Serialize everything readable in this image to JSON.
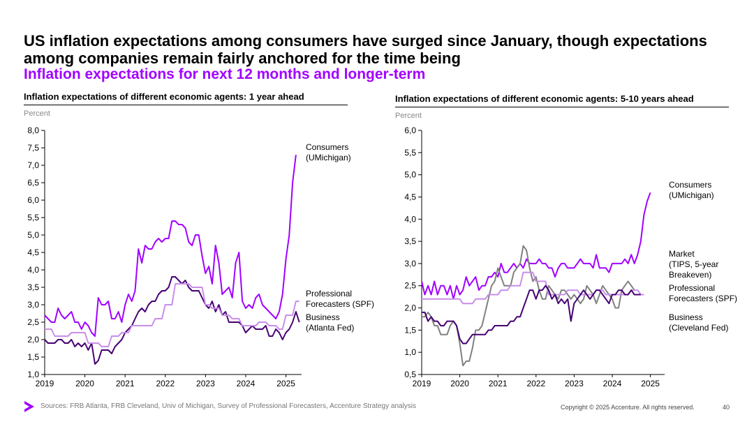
{
  "title": "US inflation expectations among consumers have surged since January, though expectations among companies remain fairly anchored for the time being",
  "subtitle": "Inflation expectations for next 12 months and longer-term",
  "footer": {
    "sources": "Sources: FRB Atlanta, FRB Cleveland, Univ of Michigan, Survey of Professional Forecasters, Accenture Strategy analysis",
    "copyright": "Copyright © 2025 Accenture. All rights reserved.",
    "page": "40"
  },
  "colors": {
    "accent": "#a100ff",
    "consumers": "#a100ff",
    "business": "#460073",
    "professional": "#c88ee8",
    "market": "#808080"
  },
  "chart_data": [
    {
      "type": "line",
      "title": "Inflation expectations of different economic agents: 1 year ahead",
      "ylabel": "Percent",
      "ylim": [
        1.0,
        8.0
      ],
      "yticks": [
        "8,0",
        "7,5",
        "7,0",
        "6,5",
        "6,0",
        "5,5",
        "5,0",
        "4,5",
        "4,0",
        "3,5",
        "3,0",
        "2,5",
        "2,0",
        "1,5",
        "1,0"
      ],
      "xticks": [
        "2019",
        "2020",
        "2021",
        "2022",
        "2023",
        "2024",
        "2025"
      ],
      "xlim": [
        2019.0,
        2025.5
      ],
      "series": [
        {
          "name": "Consumers (UMichigan)",
          "label_lines": [
            "Consumers",
            "(UMichigan)"
          ],
          "color": "#a100ff",
          "start": 2019.0,
          "step": 0.0833,
          "values": [
            2.7,
            2.6,
            2.5,
            2.5,
            2.9,
            2.7,
            2.6,
            2.7,
            2.8,
            2.5,
            2.5,
            2.3,
            2.5,
            2.4,
            2.2,
            2.1,
            3.2,
            3.0,
            3.0,
            3.1,
            2.6,
            2.6,
            2.8,
            2.5,
            3.0,
            3.3,
            3.1,
            3.4,
            4.6,
            4.2,
            4.7,
            4.6,
            4.6,
            4.8,
            4.9,
            4.8,
            4.9,
            4.9,
            5.4,
            5.4,
            5.3,
            5.3,
            5.2,
            4.8,
            4.7,
            5.0,
            5.0,
            4.4,
            3.9,
            4.1,
            3.6,
            4.7,
            4.2,
            3.3,
            3.4,
            3.5,
            3.2,
            4.2,
            4.5,
            3.1,
            2.9,
            3.0,
            2.9,
            3.2,
            3.3,
            3.0,
            2.9,
            2.8,
            2.7,
            2.6,
            2.8,
            3.3,
            4.3,
            5.0,
            6.5,
            7.3
          ]
        },
        {
          "name": "Business (Atlanta Fed)",
          "label_lines": [
            "Business",
            "(Atlanta Fed)"
          ],
          "color": "#460073",
          "start": 2019.0,
          "step": 0.0833,
          "values": [
            2.0,
            1.9,
            1.9,
            1.9,
            2.0,
            2.0,
            1.9,
            1.9,
            2.0,
            1.8,
            1.9,
            1.8,
            1.9,
            1.7,
            1.9,
            1.3,
            1.4,
            1.7,
            1.7,
            1.7,
            1.6,
            1.8,
            1.9,
            2.0,
            2.2,
            2.3,
            2.4,
            2.6,
            2.8,
            2.9,
            2.8,
            3.0,
            3.1,
            3.1,
            3.3,
            3.4,
            3.4,
            3.5,
            3.8,
            3.8,
            3.7,
            3.6,
            3.7,
            3.5,
            3.4,
            3.4,
            3.4,
            3.2,
            3.0,
            2.9,
            3.1,
            2.8,
            3.0,
            2.7,
            2.8,
            2.5,
            2.5,
            2.5,
            2.5,
            2.4,
            2.2,
            2.3,
            2.4,
            2.3,
            2.3,
            2.3,
            2.4,
            2.1,
            2.1,
            2.3,
            2.2,
            2.0,
            2.2,
            2.3,
            2.5,
            2.8,
            2.5
          ]
        },
        {
          "name": "Professional Forecasters (SPF)",
          "label_lines": [
            "Professional",
            "Forecasters (SPF)"
          ],
          "color": "#c88ee8",
          "start": 2019.0,
          "step": 0.0833,
          "values": [
            2.3,
            2.3,
            2.3,
            2.1,
            2.1,
            2.1,
            2.1,
            2.1,
            2.2,
            2.2,
            2.2,
            2.2,
            2.2,
            1.9,
            1.9,
            1.9,
            1.9,
            1.8,
            1.8,
            1.8,
            2.1,
            2.1,
            2.1,
            2.2,
            2.2,
            2.2,
            2.4,
            2.4,
            2.4,
            2.4,
            2.4,
            2.4,
            2.4,
            2.6,
            2.6,
            2.6,
            3.0,
            3.0,
            3.0,
            3.6,
            3.6,
            3.6,
            3.6,
            3.6,
            3.5,
            3.5,
            3.5,
            3.5,
            3.0,
            3.0,
            2.9,
            2.9,
            2.9,
            2.7,
            2.7,
            2.7,
            2.6,
            2.6,
            2.6,
            2.4,
            2.4,
            2.4,
            2.4,
            2.4,
            2.5,
            2.5,
            2.5,
            2.4,
            2.4,
            2.4,
            2.3,
            2.3,
            2.7,
            2.7,
            2.7,
            3.1,
            3.1
          ]
        }
      ]
    },
    {
      "type": "line",
      "title": "Inflation expectations of different economic agents: 5-10 years ahead",
      "ylabel": "Percent",
      "ylim": [
        0.5,
        6.0
      ],
      "yticks": [
        "6,0",
        "5,5",
        "5,0",
        "4,5",
        "4,0",
        "3,5",
        "3,0",
        "2,5",
        "2,0",
        "1,5",
        "1,0",
        "0,5"
      ],
      "xticks": [
        "2019",
        "2020",
        "2021",
        "2022",
        "2023",
        "2024",
        "2025"
      ],
      "xlim": [
        2019.0,
        2025.5
      ],
      "series": [
        {
          "name": "Consumers (UMichigan)",
          "label_lines": [
            "Consumers",
            "(UMichigan)"
          ],
          "color": "#a100ff",
          "start": 2019.0,
          "step": 0.0833,
          "values": [
            2.6,
            2.3,
            2.5,
            2.3,
            2.6,
            2.3,
            2.5,
            2.5,
            2.3,
            2.5,
            2.2,
            2.5,
            2.3,
            2.4,
            2.7,
            2.5,
            2.6,
            2.7,
            2.4,
            2.5,
            2.5,
            2.7,
            2.7,
            2.8,
            2.7,
            3.0,
            2.8,
            2.8,
            2.9,
            3.0,
            2.9,
            3.0,
            2.9,
            3.1,
            3.0,
            3.0,
            3.0,
            3.1,
            3.0,
            3.0,
            2.9,
            2.9,
            2.7,
            2.9,
            3.0,
            3.0,
            2.9,
            2.9,
            2.9,
            3.0,
            3.1,
            3.0,
            3.0,
            3.0,
            2.9,
            3.2,
            2.9,
            2.9,
            2.9,
            2.8,
            3.0,
            3.0,
            3.0,
            3.0,
            3.1,
            3.0,
            3.2,
            3.0,
            3.2,
            3.5,
            4.1,
            4.4,
            4.6
          ]
        },
        {
          "name": "Market (TIPS, 5-year Breakeven)",
          "label_lines": [
            "Market",
            "(TIPS, 5-year",
            "Breakeven)"
          ],
          "color": "#808080",
          "start": 2019.0,
          "step": 0.0833,
          "values": [
            1.8,
            1.8,
            1.9,
            1.8,
            1.6,
            1.6,
            1.4,
            1.4,
            1.4,
            1.6,
            1.7,
            1.6,
            1.2,
            0.7,
            0.8,
            0.8,
            1.1,
            1.5,
            1.5,
            1.6,
            1.9,
            2.2,
            2.5,
            2.6,
            2.9,
            2.7,
            2.5,
            2.5,
            2.5,
            2.8,
            2.9,
            3.0,
            3.4,
            3.3,
            2.9,
            2.6,
            2.7,
            2.4,
            2.2,
            2.2,
            2.5,
            2.4,
            2.3,
            2.2,
            2.4,
            2.4,
            2.3,
            2.2,
            2.3,
            2.2,
            2.1,
            2.2,
            2.5,
            2.4,
            2.3,
            2.1,
            2.3,
            2.5,
            2.4,
            2.3,
            2.2,
            2.0,
            2.0,
            2.4,
            2.5,
            2.6,
            2.5,
            2.4
          ]
        },
        {
          "name": "Professional Forecasters (SPF)",
          "label_lines": [
            "Professional",
            "Forecasters (SPF)"
          ],
          "color": "#c88ee8",
          "start": 2019.0,
          "step": 0.0833,
          "values": [
            2.2,
            2.2,
            2.2,
            2.2,
            2.2,
            2.2,
            2.2,
            2.2,
            2.2,
            2.2,
            2.2,
            2.2,
            2.2,
            2.1,
            2.1,
            2.1,
            2.1,
            2.2,
            2.2,
            2.2,
            2.2,
            2.3,
            2.3,
            2.3,
            2.3,
            2.4,
            2.4,
            2.4,
            2.5,
            2.5,
            2.5,
            2.5,
            2.8,
            2.8,
            2.8,
            2.8,
            2.6,
            2.6,
            2.6,
            2.6,
            2.3,
            2.3,
            2.3,
            2.3,
            2.3,
            2.3,
            2.4,
            2.4,
            2.4,
            2.4,
            2.3,
            2.3,
            2.3,
            2.3,
            2.3,
            2.4,
            2.4,
            2.4,
            2.3,
            2.3,
            2.3,
            2.3,
            2.3,
            2.3,
            2.3,
            2.3,
            2.4,
            2.4,
            2.4,
            2.3,
            2.3
          ]
        },
        {
          "name": "Business (Cleveland Fed)",
          "label_lines": [
            "Business",
            "(Cleveland Fed)"
          ],
          "color": "#460073",
          "start": 2019.0,
          "step": 0.0833,
          "values": [
            1.9,
            1.9,
            1.7,
            1.8,
            1.7,
            1.7,
            1.6,
            1.6,
            1.7,
            1.7,
            1.7,
            1.6,
            1.3,
            1.2,
            1.2,
            1.3,
            1.4,
            1.4,
            1.4,
            1.4,
            1.4,
            1.5,
            1.5,
            1.6,
            1.6,
            1.6,
            1.6,
            1.6,
            1.7,
            1.7,
            1.8,
            1.8,
            2.0,
            2.2,
            2.4,
            2.4,
            2.2,
            2.4,
            2.4,
            2.5,
            2.4,
            2.2,
            2.3,
            2.1,
            2.2,
            2.1,
            2.2,
            1.7,
            2.1,
            2.2,
            2.3,
            2.4,
            2.3,
            2.2,
            2.3,
            2.4,
            2.4,
            2.3,
            2.2,
            2.1,
            2.3,
            2.3,
            2.4,
            2.4,
            2.3,
            2.3,
            2.4,
            2.3,
            2.3,
            2.3
          ]
        }
      ]
    }
  ]
}
